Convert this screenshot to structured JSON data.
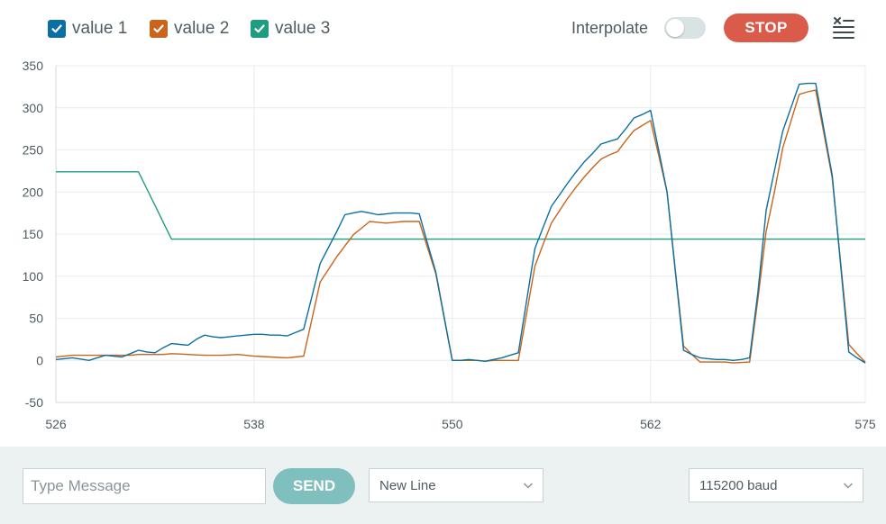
{
  "colors": {
    "series1": "#0b6fa3",
    "series2": "#c9641a",
    "series3": "#1f9d80",
    "stop": "#da5b4a",
    "send": "#7fbfbe",
    "grid": "#e8ecec",
    "toggle_off": "#dae3e3",
    "footer_bg": "#ecf1f1"
  },
  "header": {
    "legend": [
      {
        "label": "value 1",
        "checked": true
      },
      {
        "label": "value 2",
        "checked": true
      },
      {
        "label": "value 3",
        "checked": true
      }
    ],
    "interpolate_label": "Interpolate",
    "interpolate_on": false,
    "stop_label": "STOP",
    "clear_icon": "clear-list-icon"
  },
  "footer": {
    "message_placeholder": "Type Message",
    "send_label": "SEND",
    "line_ending": "New Line",
    "baud_rate": "115200 baud"
  },
  "chart_data": {
    "type": "line",
    "x": [
      526,
      526.5,
      527,
      527.5,
      528,
      528.5,
      529,
      529.5,
      530,
      530.5,
      531,
      531.5,
      532,
      532.5,
      533,
      533.5,
      534,
      534.5,
      535,
      535.5,
      536,
      536.5,
      537,
      537.5,
      538,
      538.5,
      539,
      539.5,
      540,
      540.5,
      541,
      541.5,
      542,
      542.5,
      543,
      543.5,
      544,
      544.5,
      545,
      545.5,
      546,
      546.5,
      547,
      547.5,
      548,
      548.5,
      549,
      549.5,
      550,
      550.5,
      551,
      551.5,
      552,
      552.5,
      553,
      553.5,
      554,
      554.5,
      555,
      555.5,
      556,
      556.5,
      557,
      557.5,
      558,
      558.5,
      559,
      559.5,
      560,
      560.5,
      561,
      561.5,
      562,
      562.5,
      563,
      563.5,
      564,
      564.5,
      565,
      565.5,
      566,
      566.5,
      567,
      567.5,
      568,
      568.5,
      569,
      569.5,
      570,
      570.5,
      571,
      571.5,
      572,
      572.5,
      573,
      573.5,
      574,
      574.5,
      575
    ],
    "series": [
      {
        "name": "value 1",
        "values": [
          1,
          2,
          3,
          1.5,
          0,
          3,
          6,
          5,
          4,
          8,
          12,
          10,
          9,
          15,
          20,
          19,
          18,
          25,
          30,
          28,
          27,
          28,
          29,
          30,
          31,
          31,
          30,
          30,
          29,
          33,
          37,
          76,
          115,
          134,
          153,
          173,
          175,
          177,
          175,
          173,
          174,
          175,
          175,
          175,
          174,
          139,
          105,
          52,
          0,
          0,
          1,
          0,
          -1,
          1,
          3,
          6,
          9,
          71,
          133,
          158,
          183,
          197,
          211,
          224,
          236,
          246,
          257,
          260,
          263,
          275,
          288,
          292,
          297,
          249,
          200,
          106,
          12,
          7,
          3,
          2,
          1,
          1,
          0,
          1,
          3,
          81,
          178,
          225,
          272,
          300,
          328,
          329,
          329,
          274,
          220,
          115,
          10,
          3,
          -3
        ]
      },
      {
        "name": "value 2",
        "values": [
          4,
          5,
          6,
          6,
          6,
          6,
          6,
          6,
          6,
          6,
          7,
          7,
          7,
          7,
          8,
          7.5,
          7,
          6.5,
          6,
          6,
          6,
          6.5,
          7,
          6,
          5,
          4.5,
          4,
          3.5,
          3,
          4,
          5,
          49,
          93,
          108,
          123,
          136,
          149,
          157,
          165,
          164,
          163,
          164,
          165,
          165,
          165,
          134,
          103,
          51,
          0,
          0,
          0,
          0,
          -1,
          0,
          0,
          0,
          0,
          56,
          112,
          138,
          163,
          178,
          193,
          206,
          218,
          229,
          239,
          244,
          248,
          261,
          273,
          279,
          285,
          243,
          200,
          108,
          17,
          7,
          -2,
          -2,
          -2,
          -2,
          -3,
          -2.5,
          -2,
          73,
          153,
          200,
          252,
          284,
          316,
          319,
          321,
          269,
          217,
          118,
          19,
          8,
          -2
        ]
      },
      {
        "name": "value 3",
        "values": [
          224,
          224,
          224,
          224,
          224,
          224,
          224,
          224,
          224,
          224,
          224,
          204,
          184,
          164,
          144,
          144,
          144,
          144,
          144,
          144,
          144,
          144,
          144,
          144,
          144,
          144,
          144,
          144,
          144,
          144,
          144,
          144,
          144,
          144,
          144,
          144,
          144,
          144,
          144,
          144,
          144,
          144,
          144,
          144,
          144,
          144,
          144,
          144,
          144,
          144,
          144,
          144,
          144,
          144,
          144,
          144,
          144,
          144,
          144,
          144,
          144,
          144,
          144,
          144,
          144,
          144,
          144,
          144,
          144,
          144,
          144,
          144,
          144,
          144,
          144,
          144,
          144,
          144,
          144,
          144,
          144,
          144,
          144,
          144,
          144,
          144,
          144,
          144,
          144,
          144,
          144,
          144,
          144,
          144,
          144,
          144,
          144,
          144,
          144
        ]
      }
    ],
    "xlim": [
      526,
      575
    ],
    "ylim": [
      -50,
      350
    ],
    "xticks": [
      526,
      538,
      550,
      562,
      575
    ],
    "yticks": [
      -50,
      0,
      50,
      100,
      150,
      200,
      250,
      300,
      350
    ],
    "grid": true
  }
}
